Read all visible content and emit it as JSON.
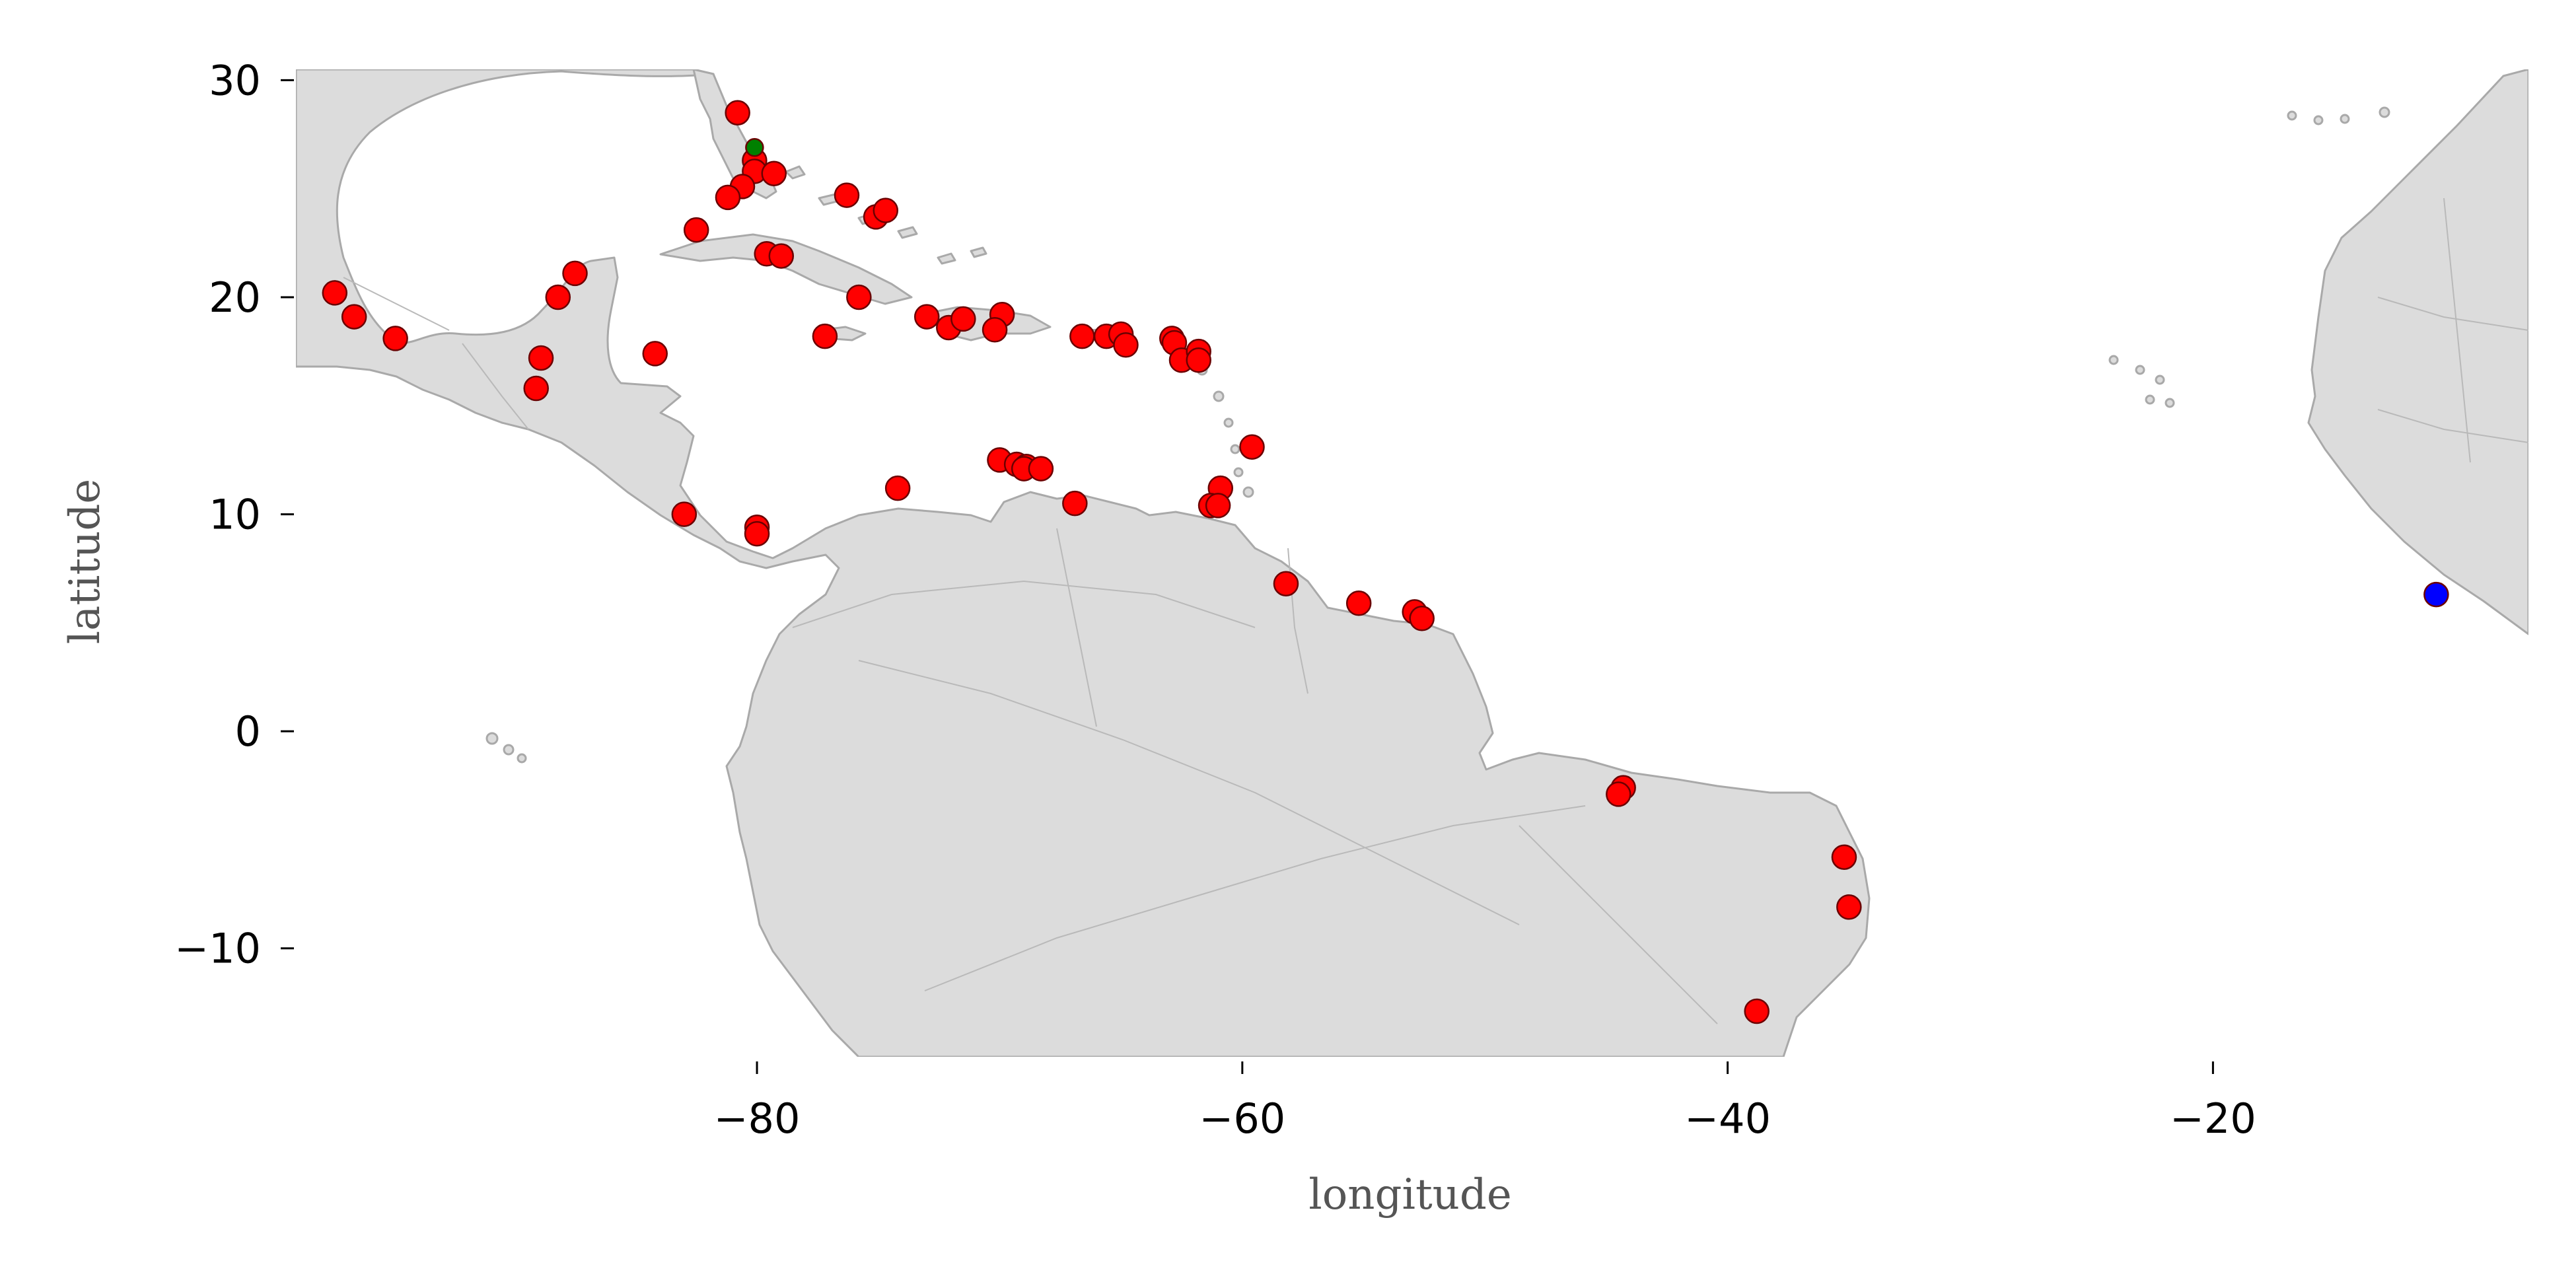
{
  "chart_data": {
    "type": "scatter",
    "title": "",
    "xlabel": "longitude",
    "ylabel": "latitude",
    "xlim": [
      -99,
      -7
    ],
    "ylim": [
      -15,
      30.5
    ],
    "xticks": [
      -80,
      -60,
      -40,
      -20
    ],
    "yticks": [
      30,
      20,
      10,
      0,
      -10
    ],
    "xtick_labels": [
      "−80",
      "−60",
      "−40",
      "−20"
    ],
    "ytick_labels": [
      "30",
      "20",
      "10",
      "0",
      "−10"
    ],
    "grid": false,
    "basemap": "countries with admin-1 subdivisions, light gray",
    "colors": {
      "land": "#dcdcdc",
      "coastline": "#a9a9a9",
      "red": "#ff0000",
      "green": "#008000",
      "blue": "#0000ff"
    },
    "series": [
      {
        "color": "#ff0000",
        "points": [
          [
            -80.8,
            28.5
          ],
          [
            -80.1,
            26.3
          ],
          [
            -80.1,
            25.8
          ],
          [
            -79.3,
            25.7
          ],
          [
            -80.6,
            25.1
          ],
          [
            -81.2,
            24.6
          ],
          [
            -76.3,
            24.7
          ],
          [
            -75.1,
            23.7
          ],
          [
            -74.7,
            24.0
          ],
          [
            -82.5,
            23.1
          ],
          [
            -79.6,
            22.0
          ],
          [
            -79.0,
            21.9
          ],
          [
            -75.8,
            20.0
          ],
          [
            -77.2,
            18.2
          ],
          [
            -73.0,
            19.1
          ],
          [
            -72.1,
            18.6
          ],
          [
            -71.5,
            19.0
          ],
          [
            -69.9,
            19.2
          ],
          [
            -70.2,
            18.5
          ],
          [
            -66.6,
            18.2
          ],
          [
            -65.6,
            18.2
          ],
          [
            -65.0,
            18.3
          ],
          [
            -64.8,
            17.8
          ],
          [
            -62.9,
            18.1
          ],
          [
            -62.8,
            17.9
          ],
          [
            -62.5,
            17.1
          ],
          [
            -61.8,
            17.5
          ],
          [
            -61.8,
            17.1
          ],
          [
            -59.6,
            13.1
          ],
          [
            -60.9,
            11.2
          ],
          [
            -61.3,
            10.4
          ],
          [
            -61.0,
            10.4
          ],
          [
            -66.9,
            10.5
          ],
          [
            -70.0,
            12.5
          ],
          [
            -69.3,
            12.3
          ],
          [
            -68.9,
            12.2
          ],
          [
            -69.0,
            12.1
          ],
          [
            -68.3,
            12.1
          ],
          [
            -74.2,
            11.2
          ],
          [
            -80.0,
            9.4
          ],
          [
            -80.0,
            9.1
          ],
          [
            -83.0,
            10.0
          ],
          [
            -84.2,
            17.4
          ],
          [
            -88.9,
            17.2
          ],
          [
            -89.1,
            15.8
          ],
          [
            -87.5,
            21.1
          ],
          [
            -88.2,
            20.0
          ],
          [
            -97.4,
            20.2
          ],
          [
            -96.6,
            19.1
          ],
          [
            -94.9,
            18.1
          ],
          [
            -58.2,
            6.8
          ],
          [
            -55.2,
            5.9
          ],
          [
            -52.9,
            5.5
          ],
          [
            -52.6,
            5.2
          ],
          [
            -44.3,
            -2.6
          ],
          [
            -44.5,
            -2.9
          ],
          [
            -35.2,
            -5.8
          ],
          [
            -35.0,
            -8.1
          ],
          [
            -38.8,
            -12.9
          ]
        ]
      },
      {
        "color": "#008000",
        "points": [
          [
            -80.1,
            26.9
          ]
        ]
      },
      {
        "color": "#0000ff",
        "points": [
          [
            -10.8,
            6.3
          ]
        ]
      }
    ]
  }
}
